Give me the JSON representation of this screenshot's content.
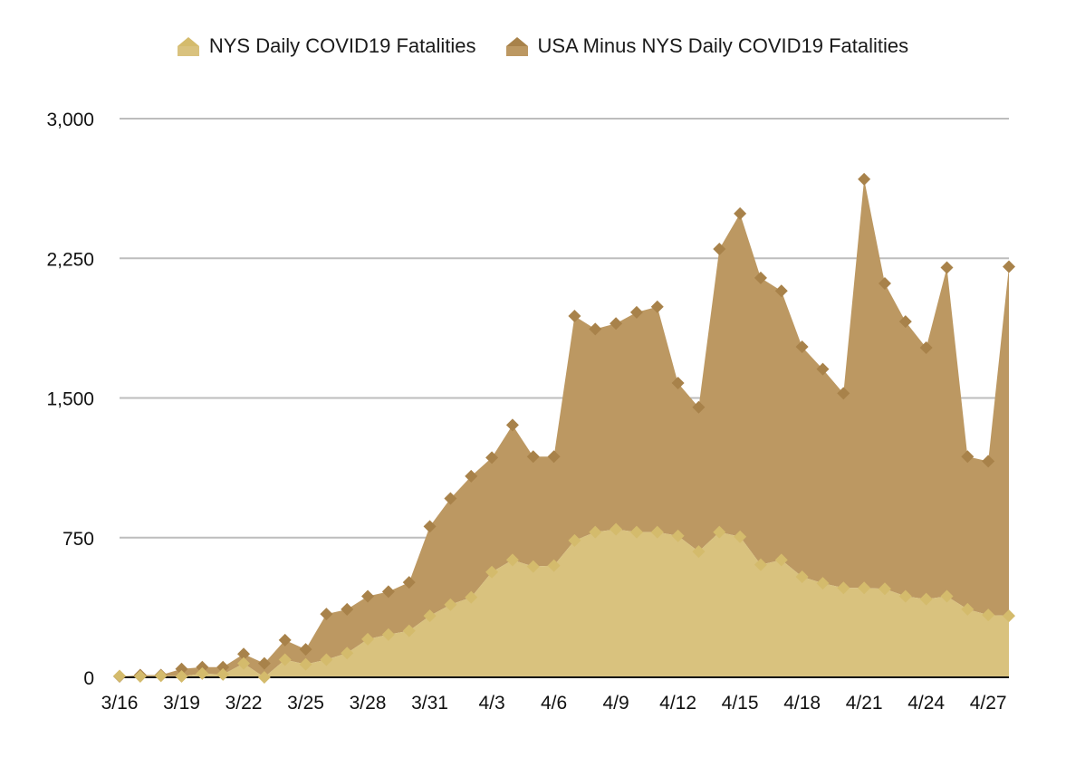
{
  "chart_data": {
    "type": "area",
    "title": "",
    "xlabel": "",
    "ylabel": "",
    "ylim": [
      0,
      3000
    ],
    "yticks": [
      0,
      750,
      1500,
      2250,
      3000
    ],
    "ytick_labels": [
      "0",
      "750",
      "1,500",
      "2,250",
      "3,000"
    ],
    "grid": true,
    "legend_position": "top-center",
    "stacked": true,
    "categories": [
      "3/16",
      "3/17",
      "3/18",
      "3/19",
      "3/20",
      "3/21",
      "3/22",
      "3/23",
      "3/24",
      "3/25",
      "3/26",
      "3/27",
      "3/28",
      "3/29",
      "3/30",
      "3/31",
      "4/1",
      "4/2",
      "4/3",
      "4/4",
      "4/5",
      "4/6",
      "4/7",
      "4/8",
      "4/9",
      "4/10",
      "4/11",
      "4/12",
      "4/13",
      "4/14",
      "4/15",
      "4/16",
      "4/17",
      "4/18",
      "4/19",
      "4/20",
      "4/21",
      "4/22",
      "4/23",
      "4/24",
      "4/25",
      "4/26",
      "4/27",
      "4/28"
    ],
    "xtick_labels": [
      "3/16",
      "",
      "",
      "3/19",
      "",
      "",
      "3/22",
      "",
      "",
      "3/25",
      "",
      "",
      "3/28",
      "",
      "",
      "3/31",
      "",
      "",
      "4/3",
      "",
      "",
      "4/6",
      "",
      "",
      "4/9",
      "",
      "",
      "4/12",
      "",
      "",
      "4/15",
      "",
      "",
      "4/18",
      "",
      "",
      "4/21",
      "",
      "",
      "4/24",
      "",
      "",
      "4/27",
      ""
    ],
    "series": [
      {
        "name": "NYS Daily COVID19 Fatalities",
        "color": "#d9c27e",
        "marker_color": "#d4bb6c",
        "values": [
          7,
          5,
          8,
          5,
          20,
          15,
          75,
          0,
          95,
          70,
          95,
          130,
          205,
          230,
          250,
          330,
          390,
          430,
          565,
          630,
          595,
          600,
          735,
          780,
          795,
          780,
          780,
          760,
          675,
          780,
          755,
          605,
          630,
          540,
          505,
          480,
          480,
          475,
          435,
          420,
          435,
          365,
          335,
          330
        ]
      },
      {
        "name": "USA Minus NYS Daily COVID19 Fatalities",
        "color": "#bc9862",
        "marker_color": "#a8824a",
        "totals": [
          5,
          12,
          12,
          45,
          55,
          55,
          125,
          75,
          200,
          150,
          340,
          365,
          435,
          460,
          510,
          810,
          960,
          1080,
          1180,
          1355,
          1185,
          1185,
          1940,
          1870,
          1900,
          1960,
          1990,
          1580,
          1450,
          2300,
          2490,
          2145,
          2075,
          1775,
          1655,
          1525,
          2675,
          2115,
          1910,
          1770,
          2200,
          1185,
          1160,
          2205
        ]
      }
    ]
  }
}
